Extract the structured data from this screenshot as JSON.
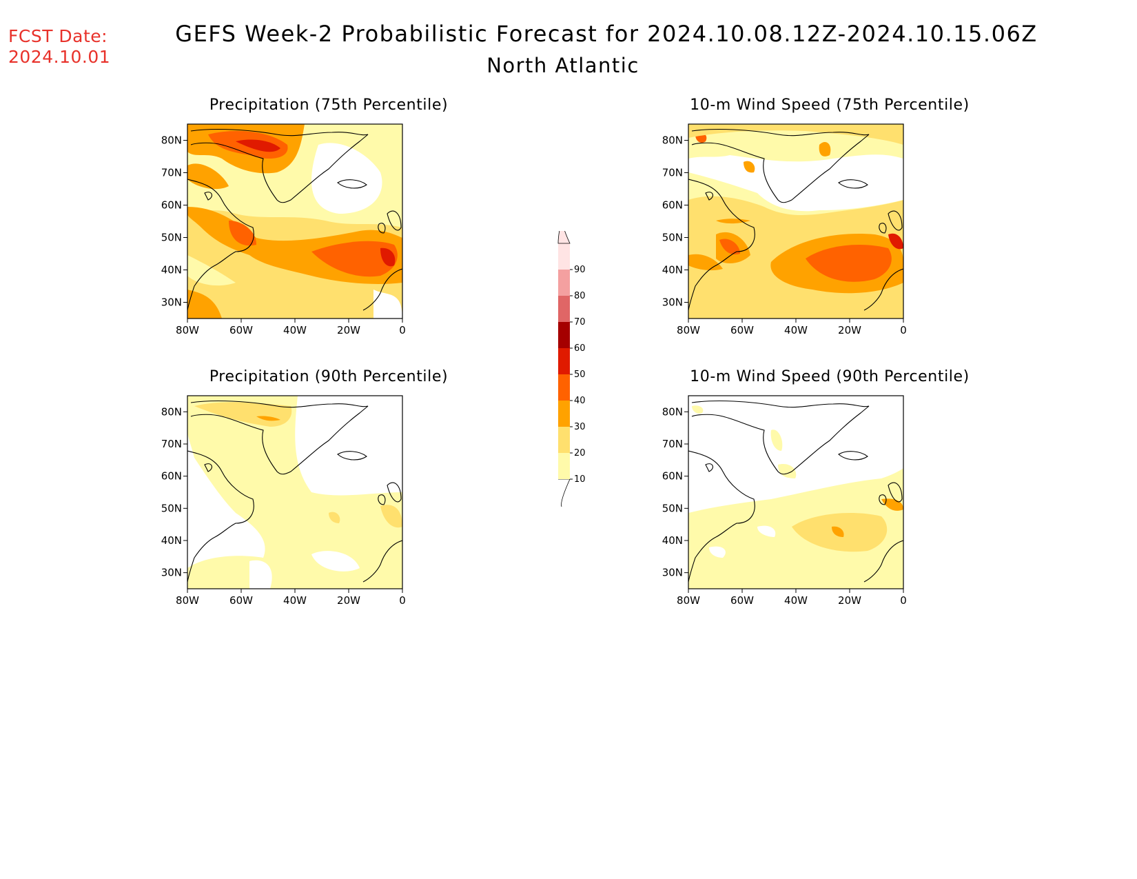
{
  "fcst": {
    "label": "FCST Date:",
    "date": "2024.10.01"
  },
  "title": "GEFS Week-2 Probabilistic Forecast for 2024.10.08.12Z-2024.10.15.06Z",
  "region": "North Atlantic",
  "axes": {
    "lat_ticks": [
      "80N",
      "70N",
      "60N",
      "50N",
      "40N",
      "30N"
    ],
    "lon_ticks": [
      "80W",
      "60W",
      "40W",
      "20W",
      "0"
    ],
    "lat_values": [
      80,
      70,
      60,
      50,
      40,
      30
    ],
    "lon_values": [
      -80,
      -60,
      -40,
      -20,
      0
    ]
  },
  "panels": [
    {
      "title": "Precipitation (75th Percentile)",
      "id": "p75"
    },
    {
      "title": "10-m Wind Speed (75th Percentile)",
      "id": "w75"
    },
    {
      "title": "Precipitation (90th Percentile)",
      "id": "p90"
    },
    {
      "title": "10-m Wind Speed (90th Percentile)",
      "id": "w90"
    }
  ],
  "colorbar": {
    "levels": [
      "10",
      "20",
      "30",
      "40",
      "50",
      "60",
      "70",
      "80",
      "90"
    ],
    "colors": [
      "#fffaaa",
      "#ffe06e",
      "#ffa200",
      "#ff6200",
      "#e01a00",
      "#a50000",
      "#e06666",
      "#f4a0a0",
      "#ffe4e4"
    ]
  }
}
